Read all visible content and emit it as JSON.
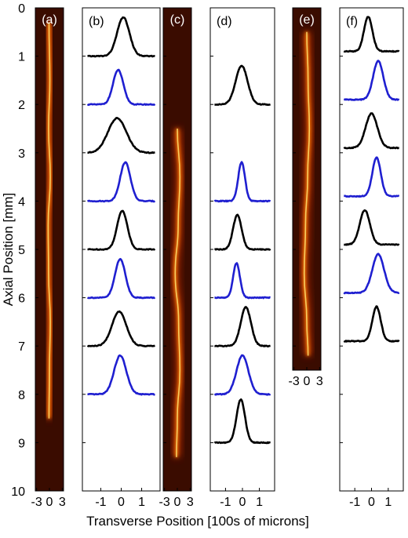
{
  "chart_data": {
    "type": "line",
    "xlabel": "Transverse Position [100s of microns]",
    "ylabel": "Axial Position [mm]",
    "ylim": [
      10,
      0
    ],
    "yticks": [
      "0",
      "1",
      "2",
      "3",
      "4",
      "5",
      "6",
      "7",
      "8",
      "9",
      "10"
    ],
    "colors": {
      "black": "#000000",
      "blue": "#1f1fd0",
      "heat_dark": "#3a0c00",
      "heat_hot": "#ffffff"
    },
    "panels": [
      {
        "label": "(a)",
        "kind": "image",
        "xticks": [
          "-3",
          "0",
          "3"
        ],
        "xlim": [
          -3.3,
          3.3
        ],
        "extent_mm": 10,
        "filament": [
          [
            0.3,
            -0.1
          ],
          [
            1.5,
            0.1
          ],
          [
            2.5,
            -0.2
          ],
          [
            3.5,
            0.2
          ],
          [
            4.5,
            -0.3
          ],
          [
            5.5,
            -0.2
          ],
          [
            6.5,
            0.2
          ],
          [
            7.5,
            0
          ],
          [
            8.5,
            -0.1
          ]
        ]
      },
      {
        "label": "(b)",
        "kind": "profiles",
        "xticks": [
          "-1",
          "0",
          "1"
        ],
        "xlim": [
          -1.9,
          1.9
        ],
        "profiles": [
          {
            "z": 1,
            "color": "black",
            "center": 0.1,
            "width": 0.3,
            "amp": 0.9
          },
          {
            "z": 2,
            "color": "blue",
            "center": -0.15,
            "width": 0.25,
            "amp": 0.8
          },
          {
            "z": 3,
            "color": "black",
            "center": -0.2,
            "width": 0.45,
            "amp": 0.8
          },
          {
            "z": 4,
            "color": "blue",
            "center": 0.2,
            "width": 0.25,
            "amp": 0.9
          },
          {
            "z": 5,
            "color": "black",
            "center": 0.05,
            "width": 0.25,
            "amp": 0.9
          },
          {
            "z": 6,
            "color": "blue",
            "center": -0.05,
            "width": 0.25,
            "amp": 0.9
          },
          {
            "z": 7,
            "color": "black",
            "center": -0.1,
            "width": 0.35,
            "amp": 0.8
          },
          {
            "z": 8,
            "color": "blue",
            "center": -0.05,
            "width": 0.3,
            "amp": 0.9
          }
        ]
      },
      {
        "label": "(c)",
        "kind": "image",
        "xticks": [
          "-3",
          "0",
          "3"
        ],
        "xlim": [
          -3.3,
          3.3
        ],
        "extent_mm": 10,
        "filament": [
          [
            2.5,
            0
          ],
          [
            3.5,
            0.6
          ],
          [
            4.5,
            0.2
          ],
          [
            5.5,
            -0.5
          ],
          [
            6.5,
            0.3
          ],
          [
            7.5,
            0.6
          ],
          [
            8.5,
            0
          ],
          [
            9.3,
            -0.2
          ]
        ]
      },
      {
        "label": "(d)",
        "kind": "profiles",
        "xticks": [
          "-1",
          "0",
          "1"
        ],
        "xlim": [
          -1.9,
          1.9
        ],
        "profiles": [
          {
            "z": 2,
            "color": "black",
            "center": -0.05,
            "width": 0.35,
            "amp": 0.9
          },
          {
            "z": 4,
            "color": "blue",
            "center": -0.05,
            "width": 0.2,
            "amp": 0.9
          },
          {
            "z": 5,
            "color": "black",
            "center": -0.3,
            "width": 0.25,
            "amp": 0.8
          },
          {
            "z": 6,
            "color": "blue",
            "center": -0.35,
            "width": 0.2,
            "amp": 0.8
          },
          {
            "z": 7,
            "color": "black",
            "center": 0.2,
            "width": 0.3,
            "amp": 0.9
          },
          {
            "z": 8,
            "color": "blue",
            "center": 0.0,
            "width": 0.35,
            "amp": 0.9
          },
          {
            "z": 9,
            "color": "black",
            "center": -0.1,
            "width": 0.25,
            "amp": 1.0
          }
        ]
      },
      {
        "label": "(e)",
        "kind": "image",
        "xticks": [
          "-3",
          "0",
          "3"
        ],
        "xlim": [
          -3.3,
          3.3
        ],
        "extent_mm": 7.5,
        "filament": [
          [
            0.5,
            0
          ],
          [
            1.5,
            0.3
          ],
          [
            2.5,
            0.6
          ],
          [
            3.5,
            0.2
          ],
          [
            4.5,
            -0.3
          ],
          [
            5.5,
            -0.6
          ],
          [
            6.5,
            0
          ],
          [
            7.2,
            0.3
          ]
        ]
      },
      {
        "label": "(f)",
        "kind": "profiles",
        "xticks": [
          "-1",
          "0",
          "1"
        ],
        "xlim": [
          -1.9,
          1.9
        ],
        "profiles": [
          {
            "z": 0.9,
            "color": "black",
            "center": -0.2,
            "width": 0.25,
            "amp": 0.8
          },
          {
            "z": 1.9,
            "color": "blue",
            "center": 0.4,
            "width": 0.3,
            "amp": 0.9
          },
          {
            "z": 2.9,
            "color": "black",
            "center": 0.0,
            "width": 0.35,
            "amp": 0.8
          },
          {
            "z": 3.9,
            "color": "blue",
            "center": 0.3,
            "width": 0.25,
            "amp": 0.9
          },
          {
            "z": 4.9,
            "color": "black",
            "center": -0.4,
            "width": 0.3,
            "amp": 0.8
          },
          {
            "z": 5.9,
            "color": "blue",
            "center": 0.4,
            "width": 0.35,
            "amp": 0.9
          },
          {
            "z": 6.9,
            "color": "black",
            "center": 0.3,
            "width": 0.25,
            "amp": 0.8
          }
        ]
      }
    ]
  }
}
